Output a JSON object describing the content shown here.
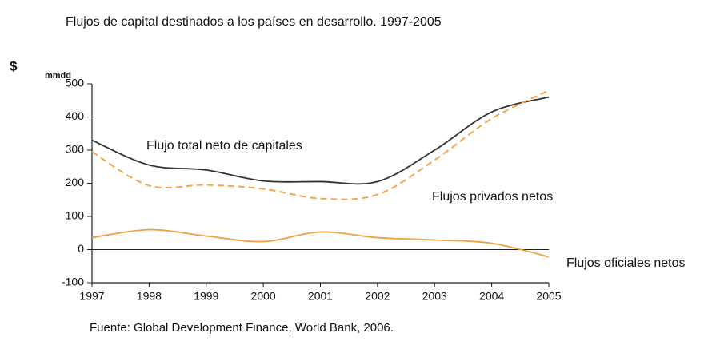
{
  "chart_data": {
    "type": "line",
    "title": "Flujos de capital destinados a los países en desarrollo. 1997-2005",
    "y_label": "$",
    "y_unit": "mmdd",
    "source": "Fuente: Global Development Finance, World Bank, 2006.",
    "categories": [
      "1997",
      "1998",
      "1999",
      "2000",
      "2001",
      "2002",
      "2003",
      "2004",
      "2005"
    ],
    "series": [
      {
        "name": "Flujo total neto de capitales",
        "color": "#333333",
        "dash": false,
        "values": [
          330,
          255,
          240,
          207,
          205,
          205,
          300,
          415,
          460
        ]
      },
      {
        "name": "Flujos privados netos",
        "color": "#f5a550",
        "dash": true,
        "values": [
          295,
          193,
          195,
          183,
          154,
          166,
          270,
          395,
          480
        ]
      },
      {
        "name": "Flujos oficiales netos",
        "color": "#f0a040",
        "dash": false,
        "values": [
          36,
          60,
          41,
          24,
          53,
          36,
          29,
          19,
          -22
        ]
      }
    ],
    "ylim": [
      -100,
      500
    ],
    "yticks": [
      -100,
      0,
      100,
      200,
      300,
      400,
      500
    ]
  }
}
